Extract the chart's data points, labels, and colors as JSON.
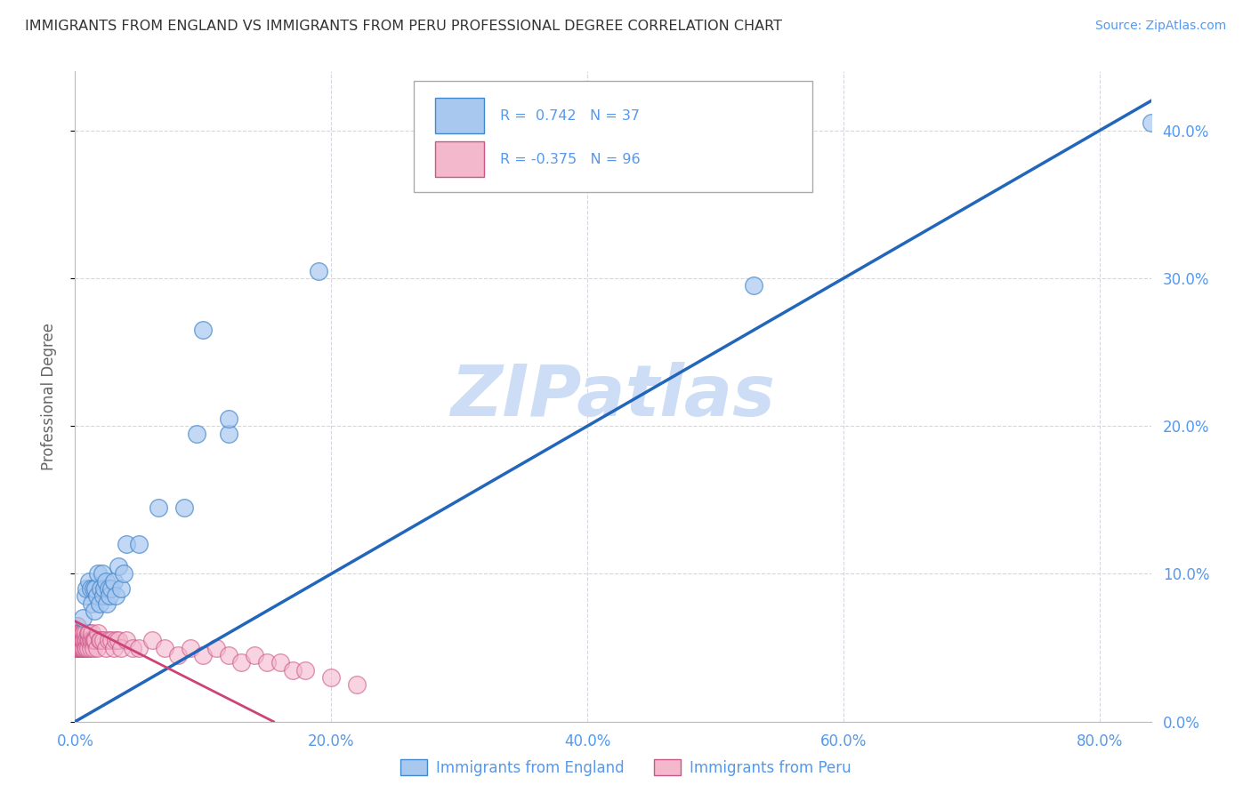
{
  "title": "IMMIGRANTS FROM ENGLAND VS IMMIGRANTS FROM PERU PROFESSIONAL DEGREE CORRELATION CHART",
  "source": "Source: ZipAtlas.com",
  "ylabel": "Professional Degree",
  "legend_labels": [
    "Immigrants from England",
    "Immigrants from Peru"
  ],
  "england_color": "#a8c8f0",
  "peru_color": "#f4b8cc",
  "england_edge_color": "#4488cc",
  "peru_edge_color": "#cc5588",
  "england_line_color": "#2266bb",
  "peru_line_color": "#cc4477",
  "tick_color": "#5599ee",
  "title_color": "#333333",
  "source_color": "#5599ee",
  "ylabel_color": "#666666",
  "watermark_color": "#ccddf5",
  "grid_color": "#ccccdd",
  "bg_color": "#ffffff",
  "xlim": [
    0.0,
    0.84
  ],
  "ylim": [
    0.0,
    0.44
  ],
  "xticks": [
    0.0,
    0.2,
    0.4,
    0.6,
    0.8
  ],
  "yticks": [
    0.0,
    0.1,
    0.2,
    0.3,
    0.4
  ],
  "xtick_labels": [
    "0.0%",
    "20.0%",
    "40.0%",
    "60.0%",
    "80.0%"
  ],
  "ytick_labels": [
    "0.0%",
    "10.0%",
    "20.0%",
    "30.0%",
    "40.0%"
  ],
  "eng_line_x": [
    0.0,
    0.84
  ],
  "eng_line_y": [
    0.0,
    0.42
  ],
  "peru_line_x": [
    0.0,
    0.155
  ],
  "peru_line_y": [
    0.068,
    0.0
  ],
  "eng_scatter_x": [
    0.006,
    0.008,
    0.009,
    0.011,
    0.012,
    0.013,
    0.014,
    0.015,
    0.016,
    0.017,
    0.018,
    0.019,
    0.02,
    0.021,
    0.022,
    0.023,
    0.024,
    0.025,
    0.026,
    0.027,
    0.028,
    0.03,
    0.032,
    0.034,
    0.036,
    0.038,
    0.04,
    0.05,
    0.065,
    0.085,
    0.1,
    0.12,
    0.19,
    0.53,
    0.84,
    0.12,
    0.095
  ],
  "eng_scatter_y": [
    0.07,
    0.085,
    0.09,
    0.095,
    0.09,
    0.08,
    0.09,
    0.075,
    0.09,
    0.085,
    0.1,
    0.08,
    0.09,
    0.1,
    0.085,
    0.09,
    0.095,
    0.08,
    0.09,
    0.085,
    0.09,
    0.095,
    0.085,
    0.105,
    0.09,
    0.1,
    0.12,
    0.12,
    0.145,
    0.145,
    0.265,
    0.195,
    0.305,
    0.295,
    0.405,
    0.205,
    0.195
  ],
  "peru_scatter_x": [
    0.001,
    0.001,
    0.001,
    0.001,
    0.001,
    0.001,
    0.001,
    0.001,
    0.001,
    0.001,
    0.002,
    0.002,
    0.002,
    0.002,
    0.002,
    0.002,
    0.002,
    0.002,
    0.002,
    0.002,
    0.003,
    0.003,
    0.003,
    0.003,
    0.003,
    0.003,
    0.003,
    0.003,
    0.004,
    0.004,
    0.004,
    0.004,
    0.004,
    0.004,
    0.005,
    0.005,
    0.005,
    0.005,
    0.005,
    0.005,
    0.006,
    0.006,
    0.006,
    0.006,
    0.007,
    0.007,
    0.007,
    0.007,
    0.008,
    0.008,
    0.008,
    0.009,
    0.009,
    0.01,
    0.01,
    0.01,
    0.011,
    0.011,
    0.012,
    0.012,
    0.013,
    0.013,
    0.014,
    0.014,
    0.015,
    0.016,
    0.017,
    0.018,
    0.019,
    0.02,
    0.022,
    0.024,
    0.026,
    0.028,
    0.03,
    0.032,
    0.034,
    0.036,
    0.04,
    0.045,
    0.05,
    0.06,
    0.07,
    0.08,
    0.09,
    0.1,
    0.11,
    0.12,
    0.13,
    0.14,
    0.15,
    0.16,
    0.17,
    0.18,
    0.2,
    0.22
  ],
  "peru_scatter_y": [
    0.055,
    0.06,
    0.065,
    0.05,
    0.06,
    0.055,
    0.06,
    0.065,
    0.05,
    0.055,
    0.055,
    0.06,
    0.05,
    0.055,
    0.06,
    0.055,
    0.05,
    0.06,
    0.065,
    0.055,
    0.05,
    0.055,
    0.06,
    0.05,
    0.055,
    0.06,
    0.055,
    0.05,
    0.055,
    0.05,
    0.055,
    0.06,
    0.05,
    0.055,
    0.055,
    0.05,
    0.06,
    0.055,
    0.05,
    0.055,
    0.055,
    0.05,
    0.06,
    0.055,
    0.055,
    0.05,
    0.06,
    0.055,
    0.055,
    0.05,
    0.06,
    0.055,
    0.05,
    0.055,
    0.06,
    0.05,
    0.055,
    0.06,
    0.055,
    0.05,
    0.055,
    0.06,
    0.055,
    0.05,
    0.055,
    0.055,
    0.05,
    0.06,
    0.055,
    0.055,
    0.055,
    0.05,
    0.055,
    0.055,
    0.05,
    0.055,
    0.055,
    0.05,
    0.055,
    0.05,
    0.05,
    0.055,
    0.05,
    0.045,
    0.05,
    0.045,
    0.05,
    0.045,
    0.04,
    0.045,
    0.04,
    0.04,
    0.035,
    0.035,
    0.03,
    0.025
  ]
}
